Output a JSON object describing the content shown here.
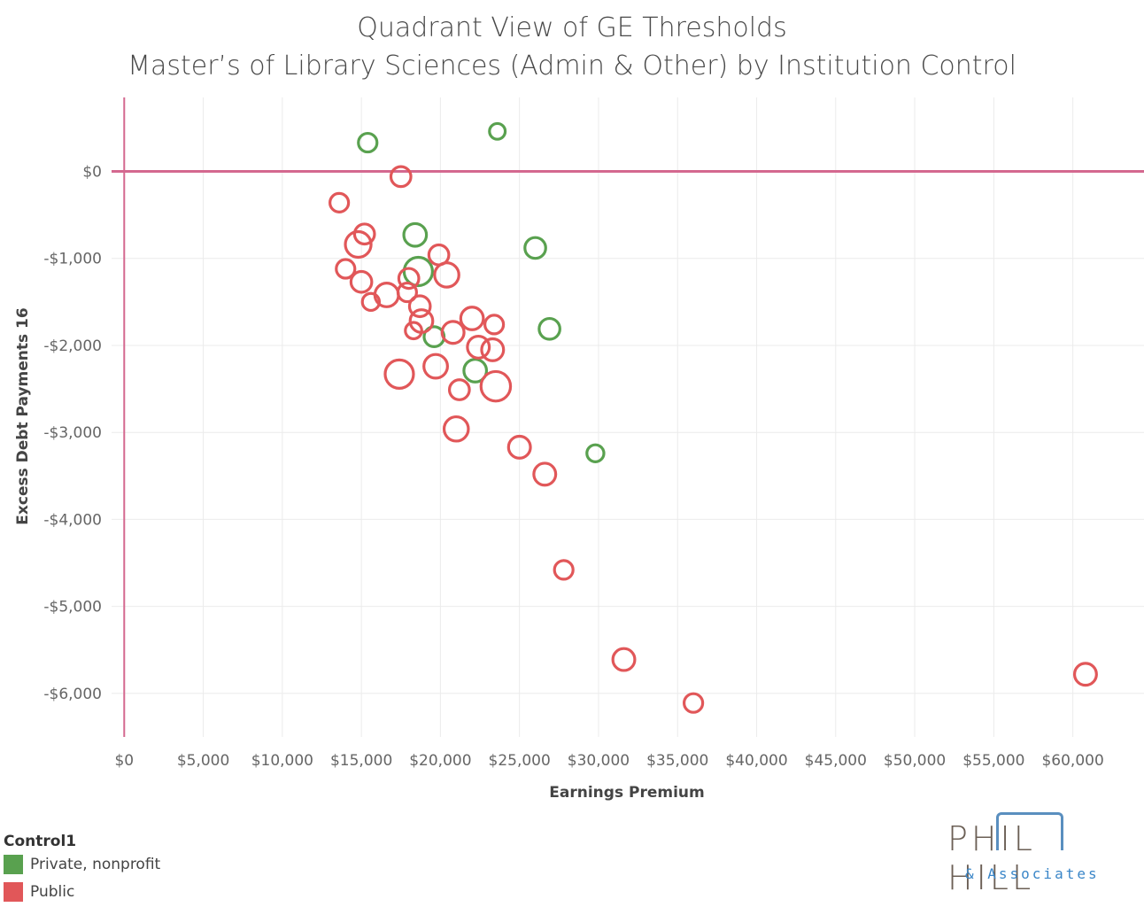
{
  "chart_data": {
    "type": "scatter",
    "title": "Quadrant View of GE Thresholds",
    "subtitle": "Master’s of Library Sciences (Admin & Other) by Institution Control",
    "xlabel": "Earnings Premium",
    "ylabel": "Excess Debt Payments 16",
    "xlim": [
      -800,
      64500
    ],
    "ylim": [
      -6500,
      850
    ],
    "x_ticks": [
      0,
      5000,
      10000,
      15000,
      20000,
      25000,
      30000,
      35000,
      40000,
      45000,
      50000,
      55000,
      60000
    ],
    "x_tick_labels": [
      "$0",
      "$5,000",
      "$10,000",
      "$15,000",
      "$20,000",
      "$25,000",
      "$30,000",
      "$35,000",
      "$40,000",
      "$45,000",
      "$50,000",
      "$55,000",
      "$60,000"
    ],
    "y_ticks": [
      0,
      -1000,
      -2000,
      -3000,
      -4000,
      -5000,
      -6000
    ],
    "y_tick_labels": [
      "$0",
      "-$1,000",
      "-$2,000",
      "-$3,000",
      "-$4,000",
      "-$5,000",
      "-$6,000"
    ],
    "reference_lines": {
      "x": 0,
      "y": 0,
      "color": "#d4688f"
    },
    "legend_title": "Control1",
    "legend_position": "bottom-left",
    "series": [
      {
        "name": "Private, nonprofit",
        "color": "#59a14f",
        "points": [
          {
            "x": 15400,
            "y": 330,
            "size": 1
          },
          {
            "x": 23600,
            "y": 460,
            "size": 0.5
          },
          {
            "x": 18400,
            "y": -730,
            "size": 2
          },
          {
            "x": 18600,
            "y": -1150,
            "size": 4
          },
          {
            "x": 26000,
            "y": -880,
            "size": 1.5
          },
          {
            "x": 26900,
            "y": -1810,
            "size": 1.5
          },
          {
            "x": 19600,
            "y": -1900,
            "size": 1.3
          },
          {
            "x": 22200,
            "y": -2290,
            "size": 2
          },
          {
            "x": 29800,
            "y": -3240,
            "size": 0.7
          }
        ]
      },
      {
        "name": "Public",
        "color": "#e15759",
        "points": [
          {
            "x": 17500,
            "y": -60,
            "size": 1.3
          },
          {
            "x": 13600,
            "y": -360,
            "size": 1
          },
          {
            "x": 15200,
            "y": -720,
            "size": 1.3
          },
          {
            "x": 14800,
            "y": -840,
            "size": 3
          },
          {
            "x": 14000,
            "y": -1120,
            "size": 1
          },
          {
            "x": 15000,
            "y": -1270,
            "size": 1.5
          },
          {
            "x": 18000,
            "y": -1230,
            "size": 1.3
          },
          {
            "x": 17900,
            "y": -1390,
            "size": 1
          },
          {
            "x": 16600,
            "y": -1420,
            "size": 2.3
          },
          {
            "x": 15600,
            "y": -1500,
            "size": 0.7
          },
          {
            "x": 19900,
            "y": -960,
            "size": 1.3
          },
          {
            "x": 20400,
            "y": -1190,
            "size": 2.5
          },
          {
            "x": 18700,
            "y": -1550,
            "size": 1.5
          },
          {
            "x": 18800,
            "y": -1720,
            "size": 2
          },
          {
            "x": 18300,
            "y": -1830,
            "size": 0.6
          },
          {
            "x": 22000,
            "y": -1690,
            "size": 2
          },
          {
            "x": 23400,
            "y": -1760,
            "size": 1
          },
          {
            "x": 20800,
            "y": -1850,
            "size": 1.8
          },
          {
            "x": 22400,
            "y": -2020,
            "size": 1.8
          },
          {
            "x": 23300,
            "y": -2050,
            "size": 1.8
          },
          {
            "x": 17400,
            "y": -2330,
            "size": 4
          },
          {
            "x": 19700,
            "y": -2240,
            "size": 2.3
          },
          {
            "x": 21200,
            "y": -2510,
            "size": 1.3
          },
          {
            "x": 23500,
            "y": -2470,
            "size": 4.5
          },
          {
            "x": 21000,
            "y": -2960,
            "size": 2.5
          },
          {
            "x": 25000,
            "y": -3170,
            "size": 1.8
          },
          {
            "x": 26600,
            "y": -3480,
            "size": 1.8
          },
          {
            "x": 27800,
            "y": -4580,
            "size": 1
          },
          {
            "x": 31600,
            "y": -5610,
            "size": 1.8
          },
          {
            "x": 36000,
            "y": -6110,
            "size": 1
          },
          {
            "x": 60800,
            "y": -5780,
            "size": 1.8
          }
        ]
      }
    ]
  },
  "logo": {
    "main": "PHIL HILL",
    "sub": "& Associates"
  }
}
